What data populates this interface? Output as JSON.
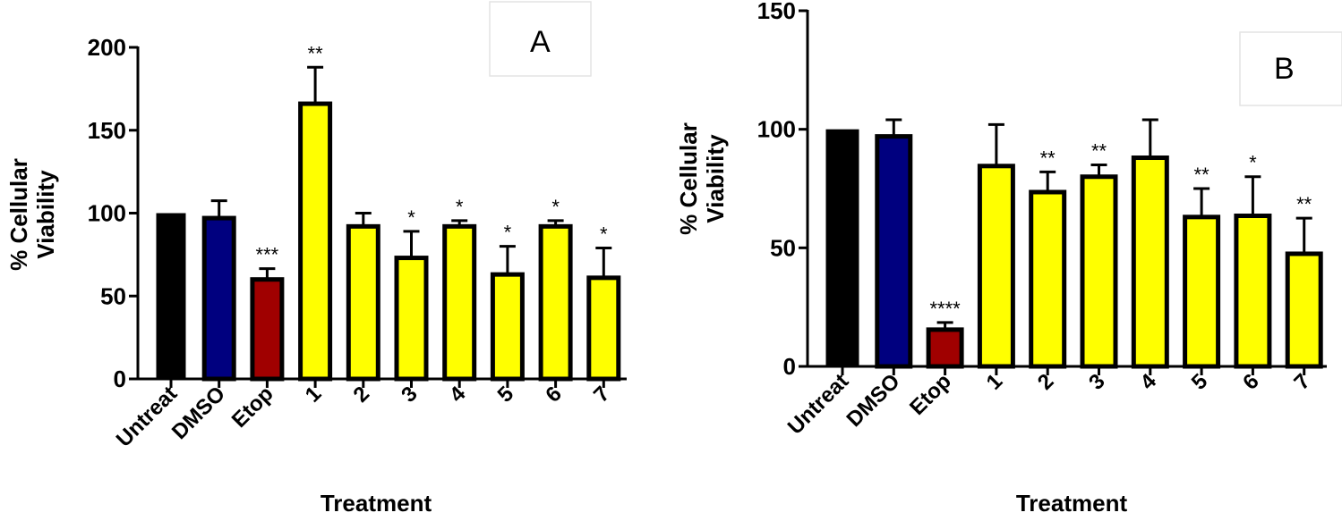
{
  "chart_data": [
    {
      "type": "bar",
      "panel_label": "A",
      "xlabel": "Treatment",
      "ylabel": "% Cellular Viability",
      "ylim": [
        0,
        200
      ],
      "yticks": [
        0,
        50,
        100,
        150,
        200
      ],
      "grid": false,
      "categories": [
        "Untreat",
        "DMSO",
        "Etop",
        "1",
        "2",
        "3",
        "4",
        "5",
        "6",
        "7"
      ],
      "values": [
        100,
        97,
        60,
        166,
        92,
        73,
        92,
        63,
        92,
        61
      ],
      "error_upper": [
        100,
        107.5,
        66.5,
        188,
        100,
        89,
        95.5,
        80,
        95.5,
        79
      ],
      "significance": [
        "",
        "",
        "***",
        "**",
        "",
        "*",
        "*",
        "*",
        "*",
        "*"
      ],
      "colors": [
        "#000000",
        "#00007f",
        "#a00000",
        "#ffff00",
        "#ffff00",
        "#ffff00",
        "#ffff00",
        "#ffff00",
        "#ffff00",
        "#ffff00"
      ]
    },
    {
      "type": "bar",
      "panel_label": "B",
      "xlabel": "Treatment",
      "ylabel": "% Cellular Viability",
      "ylim": [
        0,
        150
      ],
      "yticks": [
        0,
        50,
        100,
        150
      ],
      "grid": false,
      "categories": [
        "Untreat",
        "DMSO",
        "Etop",
        "1",
        "2",
        "3",
        "4",
        "5",
        "6",
        "7"
      ],
      "values": [
        100,
        97,
        15.5,
        84.5,
        73.5,
        80,
        88,
        63,
        63.5,
        47.5
      ],
      "error_upper": [
        100,
        104,
        18.5,
        102,
        82,
        85,
        104,
        75,
        80,
        62.5
      ],
      "significance": [
        "",
        "",
        "****",
        "",
        "**",
        "**",
        "",
        "**",
        "*",
        "**"
      ],
      "colors": [
        "#000000",
        "#00007f",
        "#a00000",
        "#ffff00",
        "#ffff00",
        "#ffff00",
        "#ffff00",
        "#ffff00",
        "#ffff00",
        "#ffff00"
      ]
    }
  ]
}
